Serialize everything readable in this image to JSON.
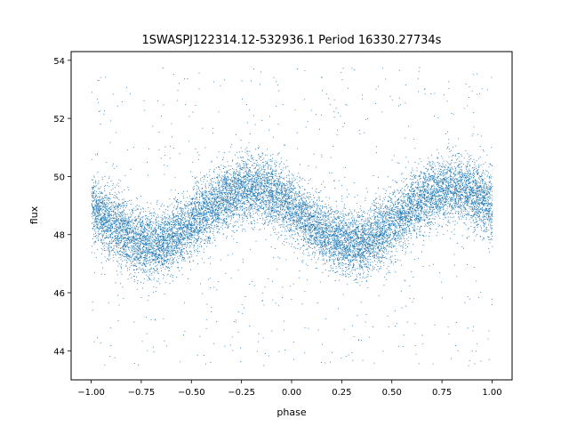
{
  "chart_data": {
    "type": "scatter",
    "title": "1SWASPJ122314.12-532936.1 Period 16330.27734s",
    "xlabel": "phase",
    "ylabel": "flux",
    "xlim": [
      -1.1,
      1.1
    ],
    "ylim": [
      43.0,
      54.3
    ],
    "x_ticks": [
      -1.0,
      -0.75,
      -0.5,
      -0.25,
      0.0,
      0.25,
      0.5,
      0.75,
      1.0
    ],
    "x_tick_labels": [
      "−1.00",
      "−0.75",
      "−0.50",
      "−0.25",
      "0.00",
      "0.25",
      "0.50",
      "0.75",
      "1.00"
    ],
    "y_ticks": [
      44,
      46,
      48,
      50,
      52,
      54
    ],
    "y_tick_labels": [
      "44",
      "46",
      "48",
      "50",
      "52",
      "54"
    ],
    "grid": false,
    "legend": "none",
    "series_color": "#1f77b4",
    "model": {
      "description_points": [
        {
          "x": -1.0,
          "y": 48.7
        },
        {
          "x": -0.7,
          "y": 47.7
        },
        {
          "x": -0.5,
          "y": 48.1
        },
        {
          "x": -0.2,
          "y": 49.6
        },
        {
          "x": 0.0,
          "y": 49.0
        },
        {
          "x": 0.3,
          "y": 47.7
        },
        {
          "x": 0.5,
          "y": 48.1
        },
        {
          "x": 0.8,
          "y": 49.6
        },
        {
          "x": 1.0,
          "y": 49.0
        }
      ],
      "mean": 48.65,
      "amplitude": 0.95,
      "peak_phase": -0.2,
      "scatter_sd": 0.55,
      "point_count": 14000,
      "outlier_fraction": 0.05,
      "outlier_range": [
        43.5,
        53.8
      ]
    }
  }
}
